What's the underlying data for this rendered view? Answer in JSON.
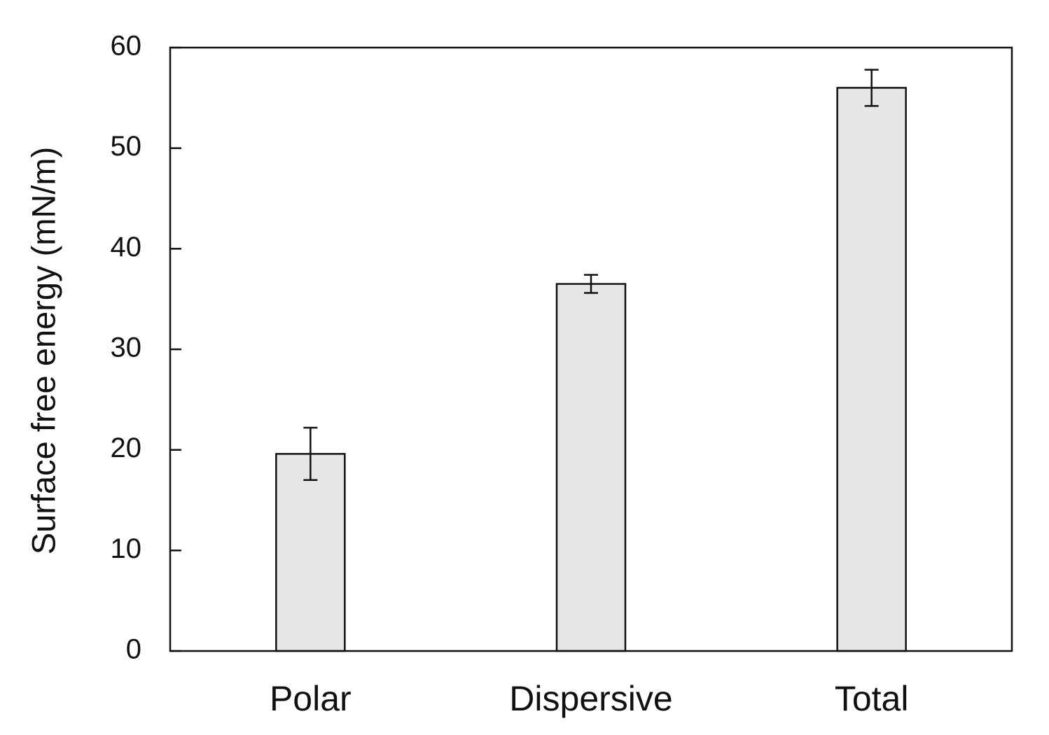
{
  "chart_data": {
    "type": "bar",
    "title": "",
    "xlabel": "",
    "ylabel": "Surface free energy (mN/m)",
    "categories": [
      "Polar",
      "Dispersive",
      "Total"
    ],
    "values": [
      19.6,
      36.5,
      56.0
    ],
    "error": [
      2.6,
      0.9,
      1.8
    ],
    "ylim": [
      0,
      60
    ],
    "yticks": [
      0,
      10,
      20,
      30,
      40,
      50,
      60
    ],
    "grid": false,
    "legend": "none",
    "bar_color": "#e6e6e6",
    "bar_edge_color": "#111111"
  }
}
